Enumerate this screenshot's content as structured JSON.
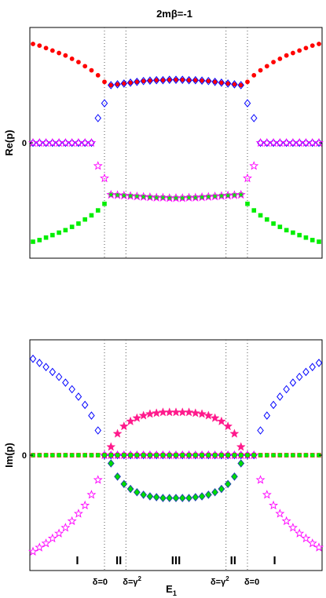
{
  "title": "2mβ=-1",
  "chart_data": [
    {
      "type": "scatter",
      "panel": "top",
      "ylabel": "Re(p)",
      "y_ticks": [
        {
          "value": 0,
          "label": "0"
        }
      ],
      "xlim": [
        0,
        1
      ],
      "ylim": [
        -1.4,
        1.4
      ],
      "x": [
        0.0,
        0.0227,
        0.0455,
        0.0682,
        0.0909,
        0.1136,
        0.1364,
        0.1591,
        0.1818,
        0.2045,
        0.2273,
        0.25,
        0.2727,
        0.2955,
        0.3182,
        0.3409,
        0.3636,
        0.3864,
        0.4091,
        0.4318,
        0.4545,
        0.4773,
        0.5,
        0.5227,
        0.5455,
        0.5682,
        0.5909,
        0.6136,
        0.6364,
        0.6591,
        0.6818,
        0.7045,
        0.7273,
        0.75,
        0.7727,
        0.7955,
        0.8182,
        0.8409,
        0.8636,
        0.8864,
        0.9091,
        0.9318,
        0.9545,
        0.9773,
        1.0
      ],
      "series": [
        {
          "marker": "circle",
          "color": "#ff0000",
          "values": [
            1.2,
            1.18,
            1.15,
            1.12,
            1.09,
            1.06,
            1.02,
            0.98,
            0.93,
            0.88,
            0.82,
            0.74,
            0.7,
            0.71,
            0.72,
            0.73,
            0.74,
            0.75,
            0.755,
            0.76,
            0.76,
            0.765,
            0.765,
            0.765,
            0.76,
            0.76,
            0.755,
            0.75,
            0.74,
            0.73,
            0.72,
            0.71,
            0.7,
            0.74,
            0.82,
            0.88,
            0.93,
            0.98,
            1.02,
            1.06,
            1.09,
            1.12,
            1.15,
            1.18,
            1.2
          ]
        },
        {
          "marker": "diamond",
          "color": "#0000ff",
          "values": [
            0,
            0,
            0,
            0,
            0,
            0,
            0,
            0,
            0,
            0,
            0.3,
            0.48,
            0.7,
            0.71,
            0.72,
            0.73,
            0.74,
            0.75,
            0.755,
            0.76,
            0.76,
            0.765,
            0.765,
            0.765,
            0.76,
            0.76,
            0.755,
            0.75,
            0.74,
            0.73,
            0.72,
            0.71,
            0.7,
            0.48,
            0.3,
            0,
            0,
            0,
            0,
            0,
            0,
            0,
            0,
            0,
            0
          ]
        },
        {
          "marker": "square",
          "color": "#00ee00",
          "values": [
            -1.2,
            -1.18,
            -1.15,
            -1.12,
            -1.09,
            -1.06,
            -1.02,
            -0.98,
            -0.93,
            -0.88,
            -0.82,
            -0.74,
            -0.63,
            -0.635,
            -0.64,
            -0.645,
            -0.65,
            -0.655,
            -0.66,
            -0.665,
            -0.665,
            -0.67,
            -0.67,
            -0.67,
            -0.665,
            -0.665,
            -0.66,
            -0.655,
            -0.65,
            -0.645,
            -0.64,
            -0.635,
            -0.63,
            -0.74,
            -0.82,
            -0.88,
            -0.93,
            -0.98,
            -1.02,
            -1.06,
            -1.09,
            -1.12,
            -1.15,
            -1.18,
            -1.2
          ]
        },
        {
          "marker": "star",
          "color": "#ff00ff",
          "values": [
            0,
            0,
            0,
            0,
            0,
            0,
            0,
            0,
            0,
            0,
            -0.28,
            -0.43,
            -0.63,
            -0.635,
            -0.64,
            -0.645,
            -0.65,
            -0.655,
            -0.66,
            -0.665,
            -0.665,
            -0.67,
            -0.67,
            -0.67,
            -0.665,
            -0.665,
            -0.66,
            -0.655,
            -0.65,
            -0.645,
            -0.64,
            -0.635,
            -0.63,
            -0.43,
            -0.28,
            0,
            0,
            0,
            0,
            0,
            0,
            0,
            0,
            0,
            0
          ]
        }
      ]
    },
    {
      "type": "scatter",
      "panel": "bottom",
      "ylabel": "Im(p)",
      "xlabel": "E",
      "xlabel_sub": "1",
      "y_ticks": [
        {
          "value": 0,
          "label": "0"
        }
      ],
      "xlim": [
        0,
        1
      ],
      "ylim": [
        -1.4,
        1.4
      ],
      "x": [
        0.0,
        0.0227,
        0.0455,
        0.0682,
        0.0909,
        0.1136,
        0.1364,
        0.1591,
        0.1818,
        0.2045,
        0.2273,
        0.25,
        0.2727,
        0.2955,
        0.3182,
        0.3409,
        0.3636,
        0.3864,
        0.4091,
        0.4318,
        0.4545,
        0.4773,
        0.5,
        0.5227,
        0.5455,
        0.5682,
        0.5909,
        0.6136,
        0.6364,
        0.6591,
        0.6818,
        0.7045,
        0.7273,
        0.75,
        0.7727,
        0.7955,
        0.8182,
        0.8409,
        0.8636,
        0.8864,
        0.9091,
        0.9318,
        0.9545,
        0.9773,
        1.0
      ],
      "series": [
        {
          "marker": "diamond",
          "color": "#0000ff",
          "values": [
            1.17,
            1.12,
            1.07,
            1.01,
            0.95,
            0.88,
            0.8,
            0.71,
            0.61,
            0.48,
            0.3,
            0,
            0,
            0,
            0,
            0,
            0,
            0,
            0,
            0,
            0,
            0,
            0,
            0,
            0,
            0,
            0,
            0,
            0,
            0,
            0,
            0,
            0,
            0,
            0,
            0.3,
            0.48,
            0.61,
            0.71,
            0.8,
            0.88,
            0.95,
            1.01,
            1.07,
            1.12
          ]
        },
        {
          "marker": "star-open",
          "color": "#ff00ff",
          "values": [
            -1.17,
            -1.12,
            -1.07,
            -1.01,
            -0.95,
            -0.88,
            -0.8,
            -0.71,
            -0.61,
            -0.48,
            -0.3,
            0,
            0,
            0,
            0,
            0,
            0,
            0,
            0,
            0,
            0,
            0,
            0,
            0,
            0,
            0,
            0,
            0,
            0,
            0,
            0,
            0,
            0,
            0,
            0,
            -0.3,
            -0.48,
            -0.61,
            -0.71,
            -0.8,
            -0.88,
            -0.95,
            -1.01,
            -1.07,
            -1.12
          ]
        },
        {
          "marker": "square",
          "color": "#ff0000",
          "values": [
            0,
            0,
            0,
            0,
            0,
            0,
            0,
            0,
            0,
            0,
            0,
            0,
            0,
            0,
            0,
            0,
            0,
            0,
            0,
            0,
            0,
            0,
            0,
            0,
            0,
            0,
            0,
            0,
            0,
            0,
            0,
            0,
            0,
            0,
            0,
            0,
            0,
            0,
            0,
            0,
            0,
            0,
            0,
            0,
            0
          ]
        },
        {
          "marker": "circle",
          "color": "#00ee00",
          "values": [
            0,
            0,
            0,
            0,
            0,
            0,
            0,
            0,
            0,
            0,
            0,
            0,
            0,
            0,
            0,
            0,
            0,
            0,
            0,
            0,
            0,
            0,
            0,
            0,
            0,
            0,
            0,
            0,
            0,
            0,
            0,
            0,
            0,
            0,
            0,
            0,
            0,
            0,
            0,
            0,
            0,
            0,
            0,
            0,
            0
          ]
        },
        {
          "marker": "star-filled",
          "color": "#ff1a8c",
          "values": [
            null,
            null,
            null,
            null,
            null,
            null,
            null,
            null,
            null,
            null,
            null,
            null,
            0.1,
            0.26,
            0.35,
            0.41,
            0.45,
            0.48,
            0.5,
            0.51,
            0.52,
            0.52,
            0.52,
            0.52,
            0.52,
            0.51,
            0.5,
            0.48,
            0.45,
            0.41,
            0.35,
            0.26,
            0.1,
            null,
            null,
            null,
            null,
            null,
            null,
            null,
            null,
            null,
            null,
            null,
            null
          ]
        },
        {
          "marker": "diamond-filled",
          "color": "#00dd00",
          "values": [
            null,
            null,
            null,
            null,
            null,
            null,
            null,
            null,
            null,
            null,
            null,
            null,
            -0.1,
            -0.26,
            -0.35,
            -0.41,
            -0.45,
            -0.48,
            -0.5,
            -0.51,
            -0.52,
            -0.52,
            -0.52,
            -0.52,
            -0.52,
            -0.51,
            -0.5,
            -0.48,
            -0.45,
            -0.41,
            -0.35,
            -0.26,
            -0.1,
            null,
            null,
            null,
            null,
            null,
            null,
            null,
            null,
            null,
            null,
            null,
            null
          ]
        }
      ],
      "regions": [
        {
          "label": "I",
          "x": 0.155
        },
        {
          "label": "II",
          "x": 0.3
        },
        {
          "label": "III",
          "x": 0.5
        },
        {
          "label": "II",
          "x": 0.7
        },
        {
          "label": "I",
          "x": 0.845
        }
      ]
    }
  ],
  "boundaries": [
    {
      "x": 0.25,
      "label": "δ=0"
    },
    {
      "x": 0.325,
      "label": "δ=γ",
      "sup": "2"
    },
    {
      "x": 0.675,
      "label": "δ=γ",
      "sup": "2"
    },
    {
      "x": 0.75,
      "label": "δ=0"
    }
  ]
}
